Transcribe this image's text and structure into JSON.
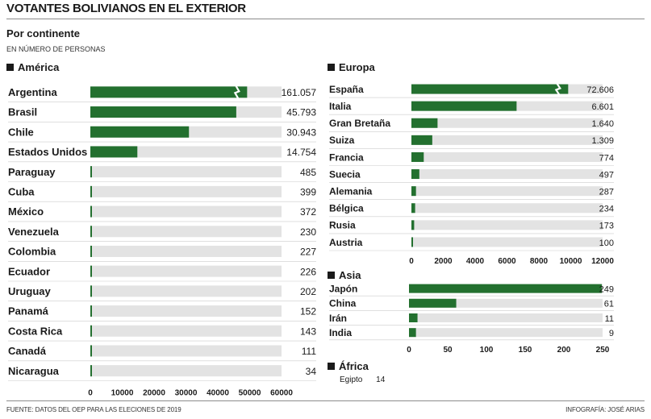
{
  "header": {
    "title": "VOTANTES BOLIVIANOS EN EL EXTERIOR",
    "subtitle": "Por continente",
    "unit": "EN NÚMERO DE PERSONAS"
  },
  "colors": {
    "bar": "#23702f",
    "track": "#e3e3e3",
    "text": "#1a1a1a",
    "separator": "#cccccc"
  },
  "chart_data": [
    {
      "type": "bar",
      "orientation": "horizontal",
      "title": "América",
      "categories": [
        "Argentina",
        "Brasil",
        "Chile",
        "Estados Unidos",
        "Paraguay",
        "Cuba",
        "México",
        "Venezuela",
        "Colombia",
        "Ecuador",
        "Uruguay",
        "Panamá",
        "Costa Rica",
        "Canadá",
        "Nicaragua"
      ],
      "values": [
        161057,
        45793,
        30943,
        14754,
        485,
        399,
        372,
        230,
        227,
        226,
        202,
        152,
        143,
        111,
        34
      ],
      "value_labels": [
        "161.057",
        "45.793",
        "30.943",
        "14.754",
        "485",
        "399",
        "372",
        "230",
        "227",
        "226",
        "202",
        "152",
        "143",
        "111",
        "34"
      ],
      "xlim": [
        0,
        60000
      ],
      "xticks": [
        0,
        10000,
        20000,
        30000,
        40000,
        50000,
        60000
      ],
      "broken_bars": [
        "Argentina"
      ]
    },
    {
      "type": "bar",
      "orientation": "horizontal",
      "title": "Europa",
      "categories": [
        "España",
        "Italia",
        "Gran Bretaña",
        "Suiza",
        "Francia",
        "Suecia",
        "Alemania",
        "Bélgica",
        "Rusia",
        "Austria"
      ],
      "values": [
        72606,
        6601,
        1640,
        1309,
        774,
        497,
        287,
        234,
        173,
        100
      ],
      "value_labels": [
        "72.606",
        "6.601",
        "1.640",
        "1.309",
        "774",
        "497",
        "287",
        "234",
        "173",
        "100"
      ],
      "xlim": [
        0,
        12000
      ],
      "xticks": [
        0,
        2000,
        4000,
        6000,
        8000,
        10000,
        12000
      ],
      "broken_bars": [
        "España"
      ]
    },
    {
      "type": "bar",
      "orientation": "horizontal",
      "title": "Asia",
      "categories": [
        "Japón",
        "China",
        "Irán",
        "India"
      ],
      "values": [
        249,
        61,
        11,
        9
      ],
      "value_labels": [
        "249",
        "61",
        "11",
        "9"
      ],
      "xlim": [
        0,
        250
      ],
      "xticks": [
        0,
        50,
        100,
        150,
        200,
        250
      ],
      "broken_bars": []
    },
    {
      "type": "table",
      "title": "África",
      "categories": [
        "Egipto"
      ],
      "values": [
        14
      ],
      "value_labels": [
        "14"
      ]
    }
  ],
  "footer": {
    "source": "FUENTE: DATOS DEL OEP PARA LAS ELECIONES DE 2019",
    "credit": "INFOGRAFÍA: JOSÉ ARIAS"
  }
}
